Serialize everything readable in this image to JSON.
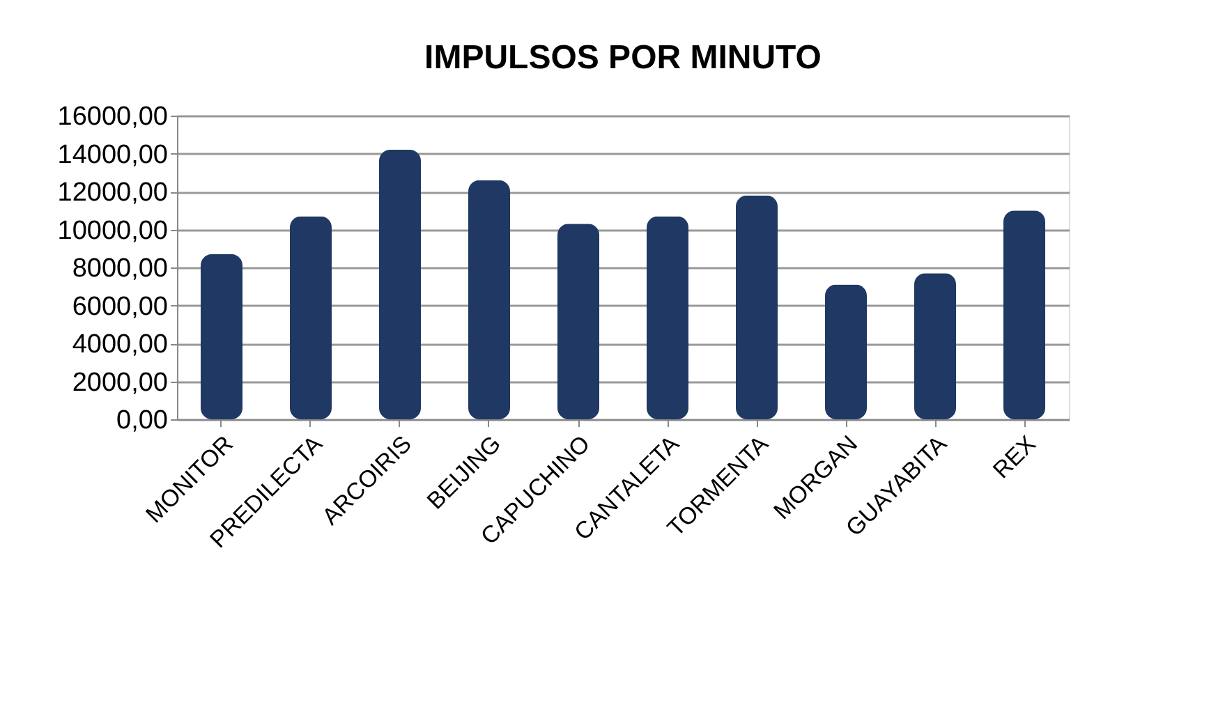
{
  "chart_data": {
    "type": "bar",
    "title": "IMPULSOS POR MINUTO",
    "categories": [
      "MONITOR",
      "PREDILECTA",
      "ARCOIRIS",
      "BEIJING",
      "CAPUCHINO",
      "CANTALETA",
      "TORMENTA",
      "MORGAN",
      "GUAYABITA",
      "REX"
    ],
    "values": [
      8700,
      10700,
      14200,
      12600,
      10300,
      10700,
      11800,
      7100,
      7700,
      11000
    ],
    "color": "#1f3864",
    "ylim": [
      0,
      16000
    ],
    "yticks": [
      {
        "value": 0,
        "label": "0,00"
      },
      {
        "value": 2000,
        "label": "2000,00"
      },
      {
        "value": 4000,
        "label": "4000,00"
      },
      {
        "value": 6000,
        "label": "6000,00"
      },
      {
        "value": 8000,
        "label": "8000,00"
      },
      {
        "value": 10000,
        "label": "10000,00"
      },
      {
        "value": 12000,
        "label": "12000,00"
      },
      {
        "value": 14000,
        "label": "14000,00"
      },
      {
        "value": 16000,
        "label": "16000,00"
      }
    ],
    "grid": "y"
  }
}
